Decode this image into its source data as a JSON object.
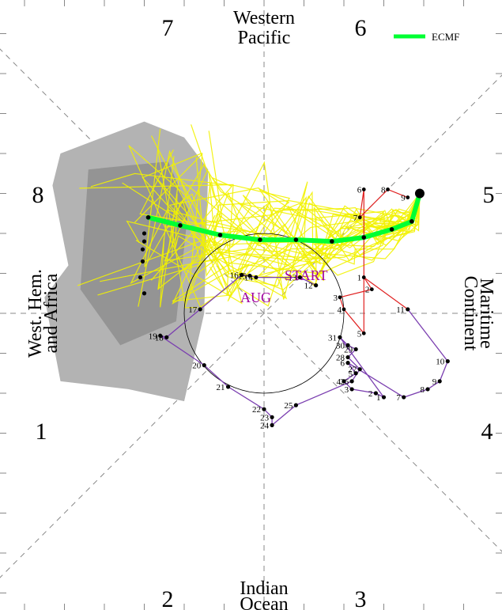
{
  "chart_data": {
    "type": "scatter",
    "title": "",
    "grid": "dashed diagonal and axis lines",
    "legend": {
      "position": "top-right",
      "entries": [
        {
          "label": "ECMF",
          "color": "#00ff33"
        }
      ]
    },
    "phase_numbers": [
      "1",
      "2",
      "3",
      "4",
      "5",
      "6",
      "7",
      "8"
    ],
    "region_labels": {
      "top": [
        "Western",
        "Pacific"
      ],
      "bottom": [
        "Indian",
        "Ocean"
      ],
      "left": [
        "West. Hem.",
        "and Africa"
      ],
      "right": [
        "Maritime",
        "Continent"
      ]
    },
    "annotations": {
      "start": "START",
      "month": "AUG"
    },
    "xlim": [
      -4,
      4
    ],
    "ylim": [
      -4,
      4
    ],
    "colors": {
      "observed_line": "#7b3fb0",
      "recent_line": "#e02020",
      "ensemble": "#f2f200",
      "mean_forecast": "#00ff33",
      "spread_outer": "#b3b3b3",
      "spread_inner": "#8c8c8c"
    },
    "observed_path": [
      {
        "x": 0.65,
        "y": 0.35,
        "label": "12"
      },
      {
        "x": 0.45,
        "y": 0.45,
        "label": "13"
      },
      {
        "x": -0.1,
        "y": 0.45,
        "label": "14"
      },
      {
        "x": -0.18,
        "y": 0.47,
        "label": "15"
      },
      {
        "x": -0.28,
        "y": 0.48,
        "label": "16"
      },
      {
        "x": -0.8,
        "y": 0.05,
        "label": "17"
      },
      {
        "x": -1.22,
        "y": -0.3,
        "label": "18"
      },
      {
        "x": -1.3,
        "y": -0.28,
        "label": "19"
      },
      {
        "x": -0.75,
        "y": -0.65,
        "label": "20"
      },
      {
        "x": -0.45,
        "y": -0.92,
        "label": "21"
      },
      {
        "x": 0.0,
        "y": -1.2,
        "label": "22"
      },
      {
        "x": 0.1,
        "y": -1.3,
        "label": "23"
      },
      {
        "x": 0.1,
        "y": -1.4,
        "label": "24"
      },
      {
        "x": 0.4,
        "y": -1.15,
        "label": "25"
      },
      {
        "x": 1.1,
        "y": -0.85,
        "label": "26"
      },
      {
        "x": 1.2,
        "y": -0.7,
        "label": "27"
      },
      {
        "x": 1.05,
        "y": -0.55,
        "label": "28"
      },
      {
        "x": 1.15,
        "y": -0.45,
        "label": "29"
      },
      {
        "x": 1.05,
        "y": -0.4,
        "label": "30"
      },
      {
        "x": 0.95,
        "y": -0.3,
        "label": "31"
      },
      {
        "x": 1.5,
        "y": -1.05,
        "label": "1"
      },
      {
        "x": 1.4,
        "y": -1.0,
        "label": "2"
      },
      {
        "x": 1.1,
        "y": -0.95,
        "label": "3"
      },
      {
        "x": 1.0,
        "y": -0.85,
        "label": "4"
      },
      {
        "x": 1.15,
        "y": -0.75,
        "label": "5"
      },
      {
        "x": 1.05,
        "y": -0.62,
        "label": "6"
      },
      {
        "x": 1.75,
        "y": -1.05,
        "label": "7"
      },
      {
        "x": 2.05,
        "y": -0.95,
        "label": "8"
      },
      {
        "x": 2.2,
        "y": -0.85,
        "label": "9"
      },
      {
        "x": 2.3,
        "y": -0.6,
        "label": "10"
      },
      {
        "x": 1.8,
        "y": 0.05,
        "label": "11"
      }
    ],
    "recent_path": [
      {
        "x": 1.8,
        "y": 0.05,
        "label": ""
      },
      {
        "x": 1.25,
        "y": 0.45,
        "label": "1"
      },
      {
        "x": 1.35,
        "y": 0.3,
        "label": "2"
      },
      {
        "x": 0.95,
        "y": 0.2,
        "label": "3"
      },
      {
        "x": 1.0,
        "y": 0.05,
        "label": "4"
      },
      {
        "x": 1.25,
        "y": -0.25,
        "label": "5"
      },
      {
        "x": 1.25,
        "y": 1.55,
        "label": "6"
      },
      {
        "x": 1.2,
        "y": 1.2,
        "label": "7"
      },
      {
        "x": 1.55,
        "y": 1.55,
        "label": "8"
      },
      {
        "x": 1.8,
        "y": 1.45,
        "label": "9"
      }
    ],
    "forecast_start": {
      "x": 1.95,
      "y": 1.5
    },
    "mean_forecast": [
      {
        "x": 1.95,
        "y": 1.5
      },
      {
        "x": 1.85,
        "y": 1.15
      },
      {
        "x": 1.6,
        "y": 1.05
      },
      {
        "x": 1.25,
        "y": 0.95
      },
      {
        "x": 0.85,
        "y": 0.9
      },
      {
        "x": 0.4,
        "y": 0.92
      },
      {
        "x": -0.05,
        "y": 0.92
      },
      {
        "x": -0.55,
        "y": 0.98
      },
      {
        "x": -1.05,
        "y": 1.1
      },
      {
        "x": -1.45,
        "y": 1.2
      }
    ],
    "ensemble_markers": [
      {
        "x": -1.5,
        "y": 1.0
      },
      {
        "x": -1.5,
        "y": 0.9
      },
      {
        "x": -1.52,
        "y": 0.8
      },
      {
        "x": -1.52,
        "y": 0.65
      },
      {
        "x": -1.55,
        "y": 0.45
      },
      {
        "x": -1.5,
        "y": 0.25
      }
    ],
    "spread_outer": [
      {
        "x": -2.55,
        "y": 2.0
      },
      {
        "x": -1.5,
        "y": 2.4
      },
      {
        "x": -1.0,
        "y": 2.2
      },
      {
        "x": -0.7,
        "y": 1.8
      },
      {
        "x": -0.75,
        "y": 0.0
      },
      {
        "x": -1.0,
        "y": -1.1
      },
      {
        "x": -1.7,
        "y": -0.95
      },
      {
        "x": -2.55,
        "y": -0.85
      },
      {
        "x": -2.75,
        "y": 0.2
      },
      {
        "x": -2.45,
        "y": 0.6
      },
      {
        "x": -2.65,
        "y": 1.6
      }
    ],
    "spread_inner": [
      {
        "x": -2.2,
        "y": 1.8
      },
      {
        "x": -1.2,
        "y": 1.9
      },
      {
        "x": -0.95,
        "y": 1.3
      },
      {
        "x": -1.1,
        "y": -0.1
      },
      {
        "x": -1.8,
        "y": -0.4
      },
      {
        "x": -2.3,
        "y": 0.3
      }
    ]
  }
}
